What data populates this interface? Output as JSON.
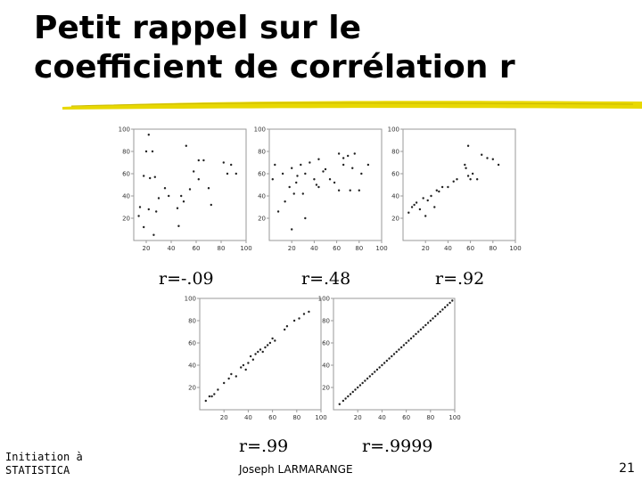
{
  "slide": {
    "title_line1": "Petit rappel sur le",
    "title_line2": "coefficient de corrélation r",
    "footer_left_line1": "Initiation à",
    "footer_left_line2": "STATISTICA",
    "footer_center": "Joseph LARMARANGE",
    "page_number": "21",
    "accent_color": "#e8d800"
  },
  "chart_data": [
    {
      "type": "scatter",
      "label": "r=-.09",
      "xlim": [
        10,
        100
      ],
      "ylim": [
        0,
        100
      ],
      "xticks": [
        "20",
        "40",
        "60",
        "80",
        "100"
      ],
      "yticks": [
        "20",
        "40",
        "60",
        "80",
        "100"
      ],
      "points": [
        [
          22,
          95
        ],
        [
          20,
          80
        ],
        [
          25,
          80
        ],
        [
          18,
          58
        ],
        [
          23,
          56
        ],
        [
          27,
          57
        ],
        [
          35,
          47
        ],
        [
          30,
          38
        ],
        [
          38,
          40
        ],
        [
          15,
          30
        ],
        [
          22,
          28
        ],
        [
          28,
          26
        ],
        [
          14,
          22
        ],
        [
          18,
          12
        ],
        [
          26,
          5
        ],
        [
          46,
          13
        ],
        [
          45,
          29
        ],
        [
          50,
          35
        ],
        [
          48,
          40
        ],
        [
          55,
          46
        ],
        [
          58,
          62
        ],
        [
          62,
          72
        ],
        [
          66,
          72
        ],
        [
          62,
          55
        ],
        [
          70,
          47
        ],
        [
          72,
          32
        ],
        [
          82,
          70
        ],
        [
          88,
          68
        ],
        [
          85,
          60
        ],
        [
          92,
          60
        ],
        [
          52,
          85
        ]
      ]
    },
    {
      "type": "scatter",
      "label": "r=.48",
      "xlim": [
        0,
        100
      ],
      "ylim": [
        0,
        100
      ],
      "xticks": [
        "20",
        "40",
        "60",
        "80",
        "100"
      ],
      "yticks": [
        "20",
        "40",
        "60",
        "80",
        "100"
      ],
      "points": [
        [
          3,
          55
        ],
        [
          5,
          68
        ],
        [
          8,
          26
        ],
        [
          12,
          60
        ],
        [
          14,
          35
        ],
        [
          18,
          48
        ],
        [
          20,
          65
        ],
        [
          22,
          42
        ],
        [
          24,
          52
        ],
        [
          25,
          58
        ],
        [
          28,
          68
        ],
        [
          30,
          42
        ],
        [
          32,
          20
        ],
        [
          32,
          60
        ],
        [
          36,
          70
        ],
        [
          40,
          55
        ],
        [
          42,
          50
        ],
        [
          44,
          48
        ],
        [
          44,
          73
        ],
        [
          48,
          62
        ],
        [
          50,
          64
        ],
        [
          54,
          55
        ],
        [
          58,
          52
        ],
        [
          62,
          78
        ],
        [
          66,
          74
        ],
        [
          66,
          68
        ],
        [
          70,
          76
        ],
        [
          72,
          45
        ],
        [
          74,
          65
        ],
        [
          76,
          78
        ],
        [
          80,
          45
        ],
        [
          82,
          60
        ],
        [
          88,
          68
        ],
        [
          62,
          45
        ],
        [
          20,
          10
        ]
      ]
    },
    {
      "type": "scatter",
      "label": "r=.92",
      "xlim": [
        0,
        100
      ],
      "ylim": [
        0,
        100
      ],
      "xticks": [
        "20",
        "40",
        "60",
        "80",
        "100"
      ],
      "yticks": [
        "20",
        "40",
        "60",
        "80",
        "100"
      ],
      "points": [
        [
          5,
          25
        ],
        [
          8,
          30
        ],
        [
          10,
          32
        ],
        [
          12,
          34
        ],
        [
          15,
          28
        ],
        [
          18,
          38
        ],
        [
          20,
          22
        ],
        [
          22,
          36
        ],
        [
          25,
          40
        ],
        [
          28,
          30
        ],
        [
          30,
          45
        ],
        [
          32,
          44
        ],
        [
          35,
          48
        ],
        [
          40,
          48
        ],
        [
          45,
          53
        ],
        [
          48,
          55
        ],
        [
          55,
          68
        ],
        [
          56,
          65
        ],
        [
          58,
          58
        ],
        [
          60,
          55
        ],
        [
          62,
          60
        ],
        [
          66,
          55
        ],
        [
          70,
          77
        ],
        [
          75,
          74
        ],
        [
          80,
          73
        ],
        [
          85,
          68
        ],
        [
          58,
          85
        ]
      ]
    },
    {
      "type": "scatter",
      "label": "r=.99",
      "xlim": [
        0,
        100
      ],
      "ylim": [
        0,
        100
      ],
      "xticks": [
        "20",
        "40",
        "60",
        "80",
        "100"
      ],
      "yticks": [
        "20",
        "40",
        "60",
        "80",
        "100"
      ],
      "points": [
        [
          5,
          8
        ],
        [
          8,
          12
        ],
        [
          10,
          12
        ],
        [
          12,
          14
        ],
        [
          15,
          18
        ],
        [
          20,
          24
        ],
        [
          24,
          28
        ],
        [
          26,
          32
        ],
        [
          30,
          30
        ],
        [
          34,
          38
        ],
        [
          36,
          40
        ],
        [
          38,
          36
        ],
        [
          40,
          42
        ],
        [
          42,
          48
        ],
        [
          44,
          45
        ],
        [
          46,
          50
        ],
        [
          48,
          52
        ],
        [
          50,
          54
        ],
        [
          52,
          52
        ],
        [
          54,
          56
        ],
        [
          56,
          58
        ],
        [
          58,
          60
        ],
        [
          60,
          64
        ],
        [
          62,
          62
        ],
        [
          70,
          72
        ],
        [
          72,
          75
        ],
        [
          78,
          80
        ],
        [
          82,
          82
        ],
        [
          86,
          86
        ],
        [
          90,
          88
        ]
      ]
    },
    {
      "type": "scatter",
      "label": "r=.9999",
      "xlim": [
        0,
        100
      ],
      "ylim": [
        0,
        100
      ],
      "xticks": [
        "20",
        "40",
        "60",
        "80",
        "100"
      ],
      "yticks": [
        "20",
        "40",
        "60",
        "80",
        "100"
      ],
      "points": [
        [
          5,
          5
        ],
        [
          8,
          8
        ],
        [
          10,
          10
        ],
        [
          12,
          12
        ],
        [
          14,
          14
        ],
        [
          16,
          16
        ],
        [
          18,
          18
        ],
        [
          20,
          20
        ],
        [
          22,
          22
        ],
        [
          24,
          24
        ],
        [
          26,
          26
        ],
        [
          28,
          28
        ],
        [
          30,
          30
        ],
        [
          32,
          32
        ],
        [
          34,
          34
        ],
        [
          36,
          36
        ],
        [
          38,
          38
        ],
        [
          40,
          40
        ],
        [
          42,
          42
        ],
        [
          44,
          44
        ],
        [
          46,
          46
        ],
        [
          48,
          48
        ],
        [
          50,
          50
        ],
        [
          52,
          52
        ],
        [
          54,
          54
        ],
        [
          56,
          56
        ],
        [
          58,
          58
        ],
        [
          60,
          60
        ],
        [
          62,
          62
        ],
        [
          64,
          64
        ],
        [
          66,
          66
        ],
        [
          68,
          68
        ],
        [
          70,
          70
        ],
        [
          72,
          72
        ],
        [
          74,
          74
        ],
        [
          76,
          76
        ],
        [
          78,
          78
        ],
        [
          80,
          80
        ],
        [
          82,
          82
        ],
        [
          84,
          84
        ],
        [
          86,
          86
        ],
        [
          88,
          88
        ],
        [
          90,
          90
        ],
        [
          92,
          92
        ],
        [
          94,
          94
        ],
        [
          96,
          96
        ],
        [
          98,
          98
        ]
      ]
    }
  ]
}
